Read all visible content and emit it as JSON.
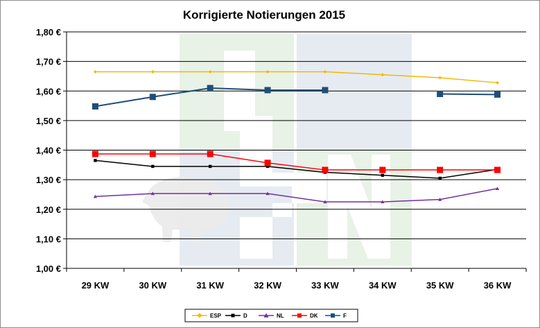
{
  "chart_data": {
    "type": "line",
    "title": "Korrigierte Notierungen 2015",
    "xlabel": "",
    "ylabel": "",
    "categories": [
      "29 KW",
      "30 KW",
      "31 KW",
      "32 KW",
      "33 KW",
      "34 KW",
      "35 KW",
      "36 KW"
    ],
    "ylim": [
      1.0,
      1.8
    ],
    "yticks": [
      1.0,
      1.1,
      1.2,
      1.3,
      1.4,
      1.5,
      1.6,
      1.7,
      1.8
    ],
    "ytick_labels": [
      "1,00 €",
      "1,10 €",
      "1,20 €",
      "1,30 €",
      "1,40 €",
      "1,50 €",
      "1,60 €",
      "1,70 €",
      "1,80 €"
    ],
    "grid": true,
    "legend_position": "bottom",
    "series": [
      {
        "name": "ESP",
        "color": "#f2b705",
        "marker": "diamond",
        "values": [
          1.665,
          1.665,
          1.665,
          1.665,
          1.665,
          1.655,
          1.645,
          1.628
        ]
      },
      {
        "name": "D",
        "color": "#000000",
        "marker": "square-small",
        "values": [
          1.365,
          1.345,
          1.345,
          1.345,
          1.325,
          1.315,
          1.305,
          1.335
        ]
      },
      {
        "name": "NL",
        "color": "#7030a0",
        "marker": "triangle",
        "values": [
          1.243,
          1.253,
          1.253,
          1.253,
          1.225,
          1.225,
          1.233,
          1.27
        ]
      },
      {
        "name": "DK",
        "color": "#ff0000",
        "marker": "square",
        "values": [
          1.387,
          1.387,
          1.387,
          1.357,
          1.333,
          1.333,
          1.333,
          1.333
        ]
      },
      {
        "name": "F",
        "color": "#1f4e79",
        "marker": "square",
        "values": [
          1.548,
          1.58,
          1.61,
          1.603,
          1.603,
          null,
          1.59,
          1.588
        ]
      }
    ]
  }
}
